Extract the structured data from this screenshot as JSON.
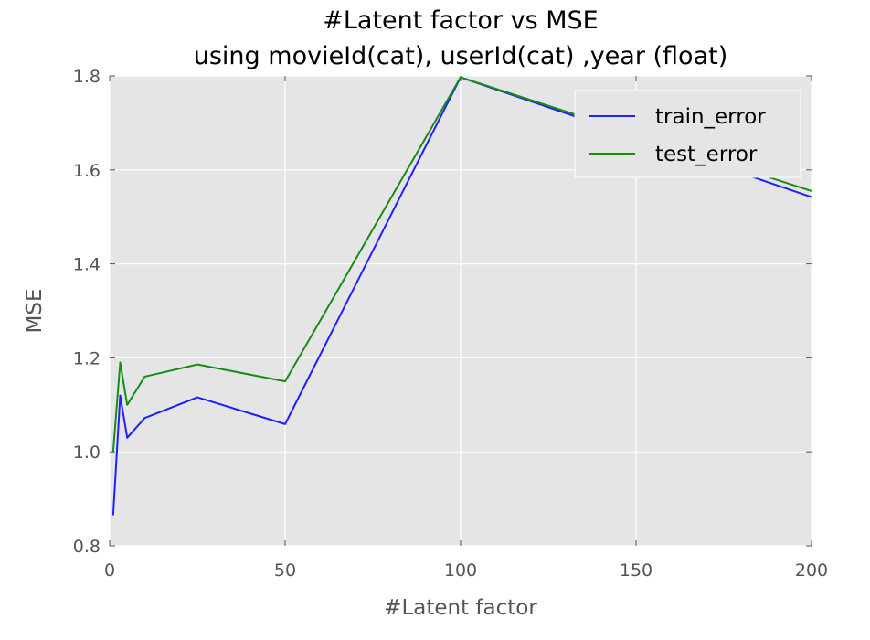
{
  "chart_data": {
    "type": "line",
    "title": "#Latent factor vs MSE",
    "subtitle": "using movieId(cat), userId(cat) ,year (float)",
    "xlabel": "#Latent factor",
    "ylabel": "MSE",
    "xlim": [
      0,
      200
    ],
    "ylim": [
      0.8,
      1.8
    ],
    "xticks": [
      0,
      50,
      100,
      150,
      200
    ],
    "yticks": [
      0.8,
      1.0,
      1.2,
      1.4,
      1.6,
      1.8
    ],
    "xtick_labels": [
      "0",
      "50",
      "100",
      "150",
      "200"
    ],
    "ytick_labels": [
      "0.8",
      "1.0",
      "1.2",
      "1.4",
      "1.6",
      "1.8"
    ],
    "grid": true,
    "legend_position": "top-right",
    "series": [
      {
        "name": "train_error",
        "color": "#1f1fff",
        "x": [
          1,
          3,
          5,
          10,
          25,
          50,
          100,
          200
        ],
        "y": [
          0.865,
          1.12,
          1.03,
          1.072,
          1.116,
          1.059,
          1.797,
          1.542
        ]
      },
      {
        "name": "test_error",
        "color": "#178c17",
        "x": [
          1,
          3,
          5,
          10,
          25,
          50,
          100,
          200
        ],
        "y": [
          1.0,
          1.19,
          1.1,
          1.16,
          1.186,
          1.15,
          1.797,
          1.555
        ]
      }
    ]
  }
}
